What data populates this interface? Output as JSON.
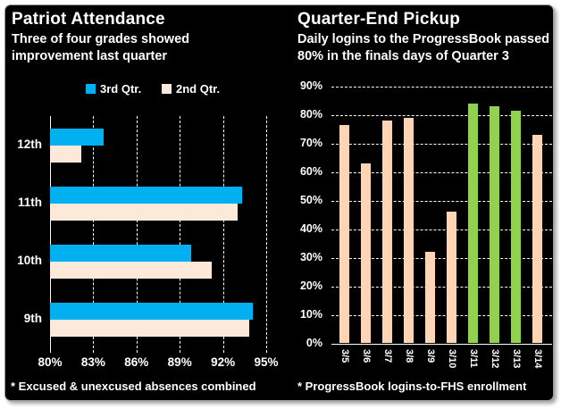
{
  "panel": {
    "background": "#000000",
    "page_background": "#FFFFFF",
    "text_color": "#FFFFFF"
  },
  "chart_data": [
    {
      "type": "bar",
      "orientation": "horizontal",
      "title": "Patriot Attendance",
      "subtitle_lines": [
        "Three of four grades showed",
        "improvement last quarter"
      ],
      "footnote": "* Excused & unexcused absences combined",
      "categories": [
        "12th",
        "11th",
        "10th",
        "9th"
      ],
      "series": [
        {
          "name": "3rd Qtr.",
          "color": "#00B0F0",
          "values": [
            83.7,
            93.3,
            89.8,
            94.1
          ]
        },
        {
          "name": "2nd Qtr.",
          "color": "#FDE9D9",
          "values": [
            82.2,
            93.0,
            91.2,
            93.8
          ]
        }
      ],
      "xlim": [
        80,
        95
      ],
      "xtick_labels": [
        "80%",
        "83%",
        "86%",
        "89%",
        "92%",
        "95%"
      ],
      "grid": "vertical-dashed",
      "legend_position": "top-center"
    },
    {
      "type": "bar",
      "orientation": "vertical",
      "title": "Quarter-End Pickup",
      "subtitle_lines": [
        "Daily logins to the ProgressBook passed",
        "80% in the finals days of Quarter 3"
      ],
      "footnote": "* ProgressBook logins-to-FHS enrollment",
      "categories": [
        "3/5",
        "3/6",
        "3/7",
        "3/8",
        "3/9",
        "3/10",
        "3/11",
        "3/12",
        "3/13",
        "3/14"
      ],
      "values": [
        76.5,
        63,
        78,
        79,
        32,
        46,
        84,
        83,
        81.5,
        73
      ],
      "bar_colors": [
        "#FBD5B5",
        "#FBD5B5",
        "#FBD5B5",
        "#FBD5B5",
        "#FBD5B5",
        "#FBD5B5",
        "#92D050",
        "#92D050",
        "#92D050",
        "#FBD5B5"
      ],
      "ylim": [
        0,
        90
      ],
      "ytick_labels": [
        "0%",
        "10%",
        "20%",
        "30%",
        "40%",
        "50%",
        "60%",
        "70%",
        "80%",
        "90%"
      ],
      "grid": "horizontal-dashed",
      "legend_position": "none"
    }
  ]
}
